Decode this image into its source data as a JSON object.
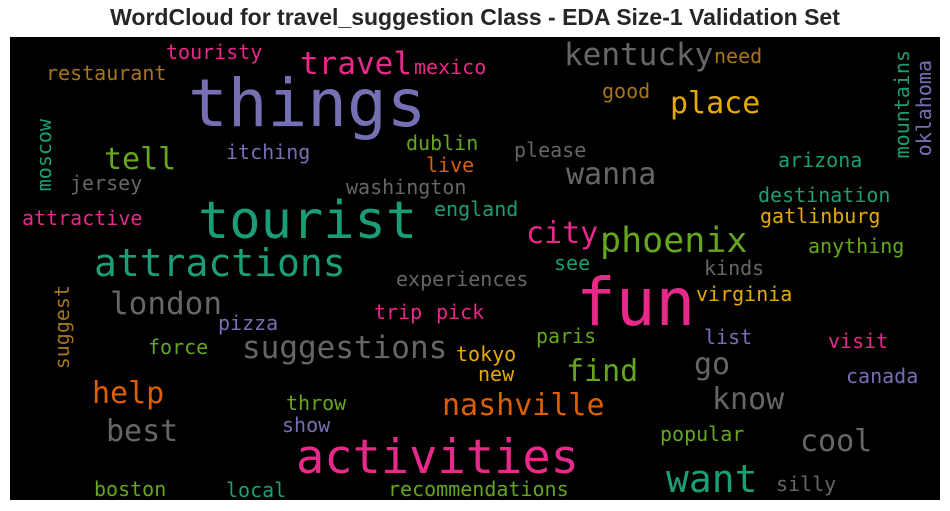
{
  "chart_data": {
    "type": "wordcloud",
    "title": "WordCloud for travel_suggestion Class - EDA Size-1 Validation Set",
    "background": "#000000",
    "colormap": "Dark2",
    "words": [
      {
        "text": "things",
        "color": "#7570b3"
      },
      {
        "text": "fun",
        "color": "#e7298a"
      },
      {
        "text": "tourist",
        "color": "#1b9e77"
      },
      {
        "text": "activities",
        "color": "#e7298a"
      },
      {
        "text": "attractions",
        "color": "#1b9e77"
      },
      {
        "text": "phoenix",
        "color": "#66a61e"
      },
      {
        "text": "want",
        "color": "#1b9e77"
      },
      {
        "text": "suggestions",
        "color": "#666666"
      },
      {
        "text": "kentucky",
        "color": "#666666"
      },
      {
        "text": "travel",
        "color": "#e7298a"
      },
      {
        "text": "london",
        "color": "#666666"
      },
      {
        "text": "nashville",
        "color": "#d95f02"
      },
      {
        "text": "place",
        "color": "#e6ab02"
      },
      {
        "text": "city",
        "color": "#e7298a"
      },
      {
        "text": "wanna",
        "color": "#666666"
      },
      {
        "text": "find",
        "color": "#66a61e"
      },
      {
        "text": "know",
        "color": "#666666"
      },
      {
        "text": "best",
        "color": "#666666"
      },
      {
        "text": "help",
        "color": "#d95f02"
      },
      {
        "text": "cool",
        "color": "#666666"
      },
      {
        "text": "go",
        "color": "#666666"
      },
      {
        "text": "tell",
        "color": "#66a61e"
      },
      {
        "text": "touristy",
        "color": "#e7298a"
      },
      {
        "text": "restaurant",
        "color": "#a6761d"
      },
      {
        "text": "mexico",
        "color": "#e7298a"
      },
      {
        "text": "need",
        "color": "#a6761d"
      },
      {
        "text": "good",
        "color": "#a6761d"
      },
      {
        "text": "moscow",
        "color": "#1b9e77"
      },
      {
        "text": "mountains",
        "color": "#1b9e77"
      },
      {
        "text": "oklahoma",
        "color": "#7570b3"
      },
      {
        "text": "dublin",
        "color": "#66a61e"
      },
      {
        "text": "itching",
        "color": "#7570b3"
      },
      {
        "text": "please",
        "color": "#666666"
      },
      {
        "text": "live",
        "color": "#d95f02"
      },
      {
        "text": "arizona",
        "color": "#1b9e77"
      },
      {
        "text": "jersey",
        "color": "#666666"
      },
      {
        "text": "washington",
        "color": "#666666"
      },
      {
        "text": "destination",
        "color": "#1b9e77"
      },
      {
        "text": "attractive",
        "color": "#e7298a"
      },
      {
        "text": "england",
        "color": "#1b9e77"
      },
      {
        "text": "gatlinburg",
        "color": "#e6ab02"
      },
      {
        "text": "anything",
        "color": "#66a61e"
      },
      {
        "text": "experiences",
        "color": "#666666"
      },
      {
        "text": "see",
        "color": "#1b9e77"
      },
      {
        "text": "kinds",
        "color": "#666666"
      },
      {
        "text": "suggest",
        "color": "#a6761d"
      },
      {
        "text": "virginia",
        "color": "#e6ab02"
      },
      {
        "text": "trip",
        "color": "#e7298a"
      },
      {
        "text": "pick",
        "color": "#e7298a"
      },
      {
        "text": "pizza",
        "color": "#7570b3"
      },
      {
        "text": "paris",
        "color": "#66a61e"
      },
      {
        "text": "list",
        "color": "#7570b3"
      },
      {
        "text": "visit",
        "color": "#e7298a"
      },
      {
        "text": "force",
        "color": "#66a61e"
      },
      {
        "text": "tokyo",
        "color": "#e6ab02"
      },
      {
        "text": "new",
        "color": "#e6ab02"
      },
      {
        "text": "canada",
        "color": "#7570b3"
      },
      {
        "text": "throw",
        "color": "#66a61e"
      },
      {
        "text": "show",
        "color": "#7570b3"
      },
      {
        "text": "popular",
        "color": "#66a61e"
      },
      {
        "text": "silly",
        "color": "#666666"
      },
      {
        "text": "boston",
        "color": "#66a61e"
      },
      {
        "text": "local",
        "color": "#1b9e77"
      },
      {
        "text": "recommendations",
        "color": "#66a61e"
      }
    ]
  }
}
